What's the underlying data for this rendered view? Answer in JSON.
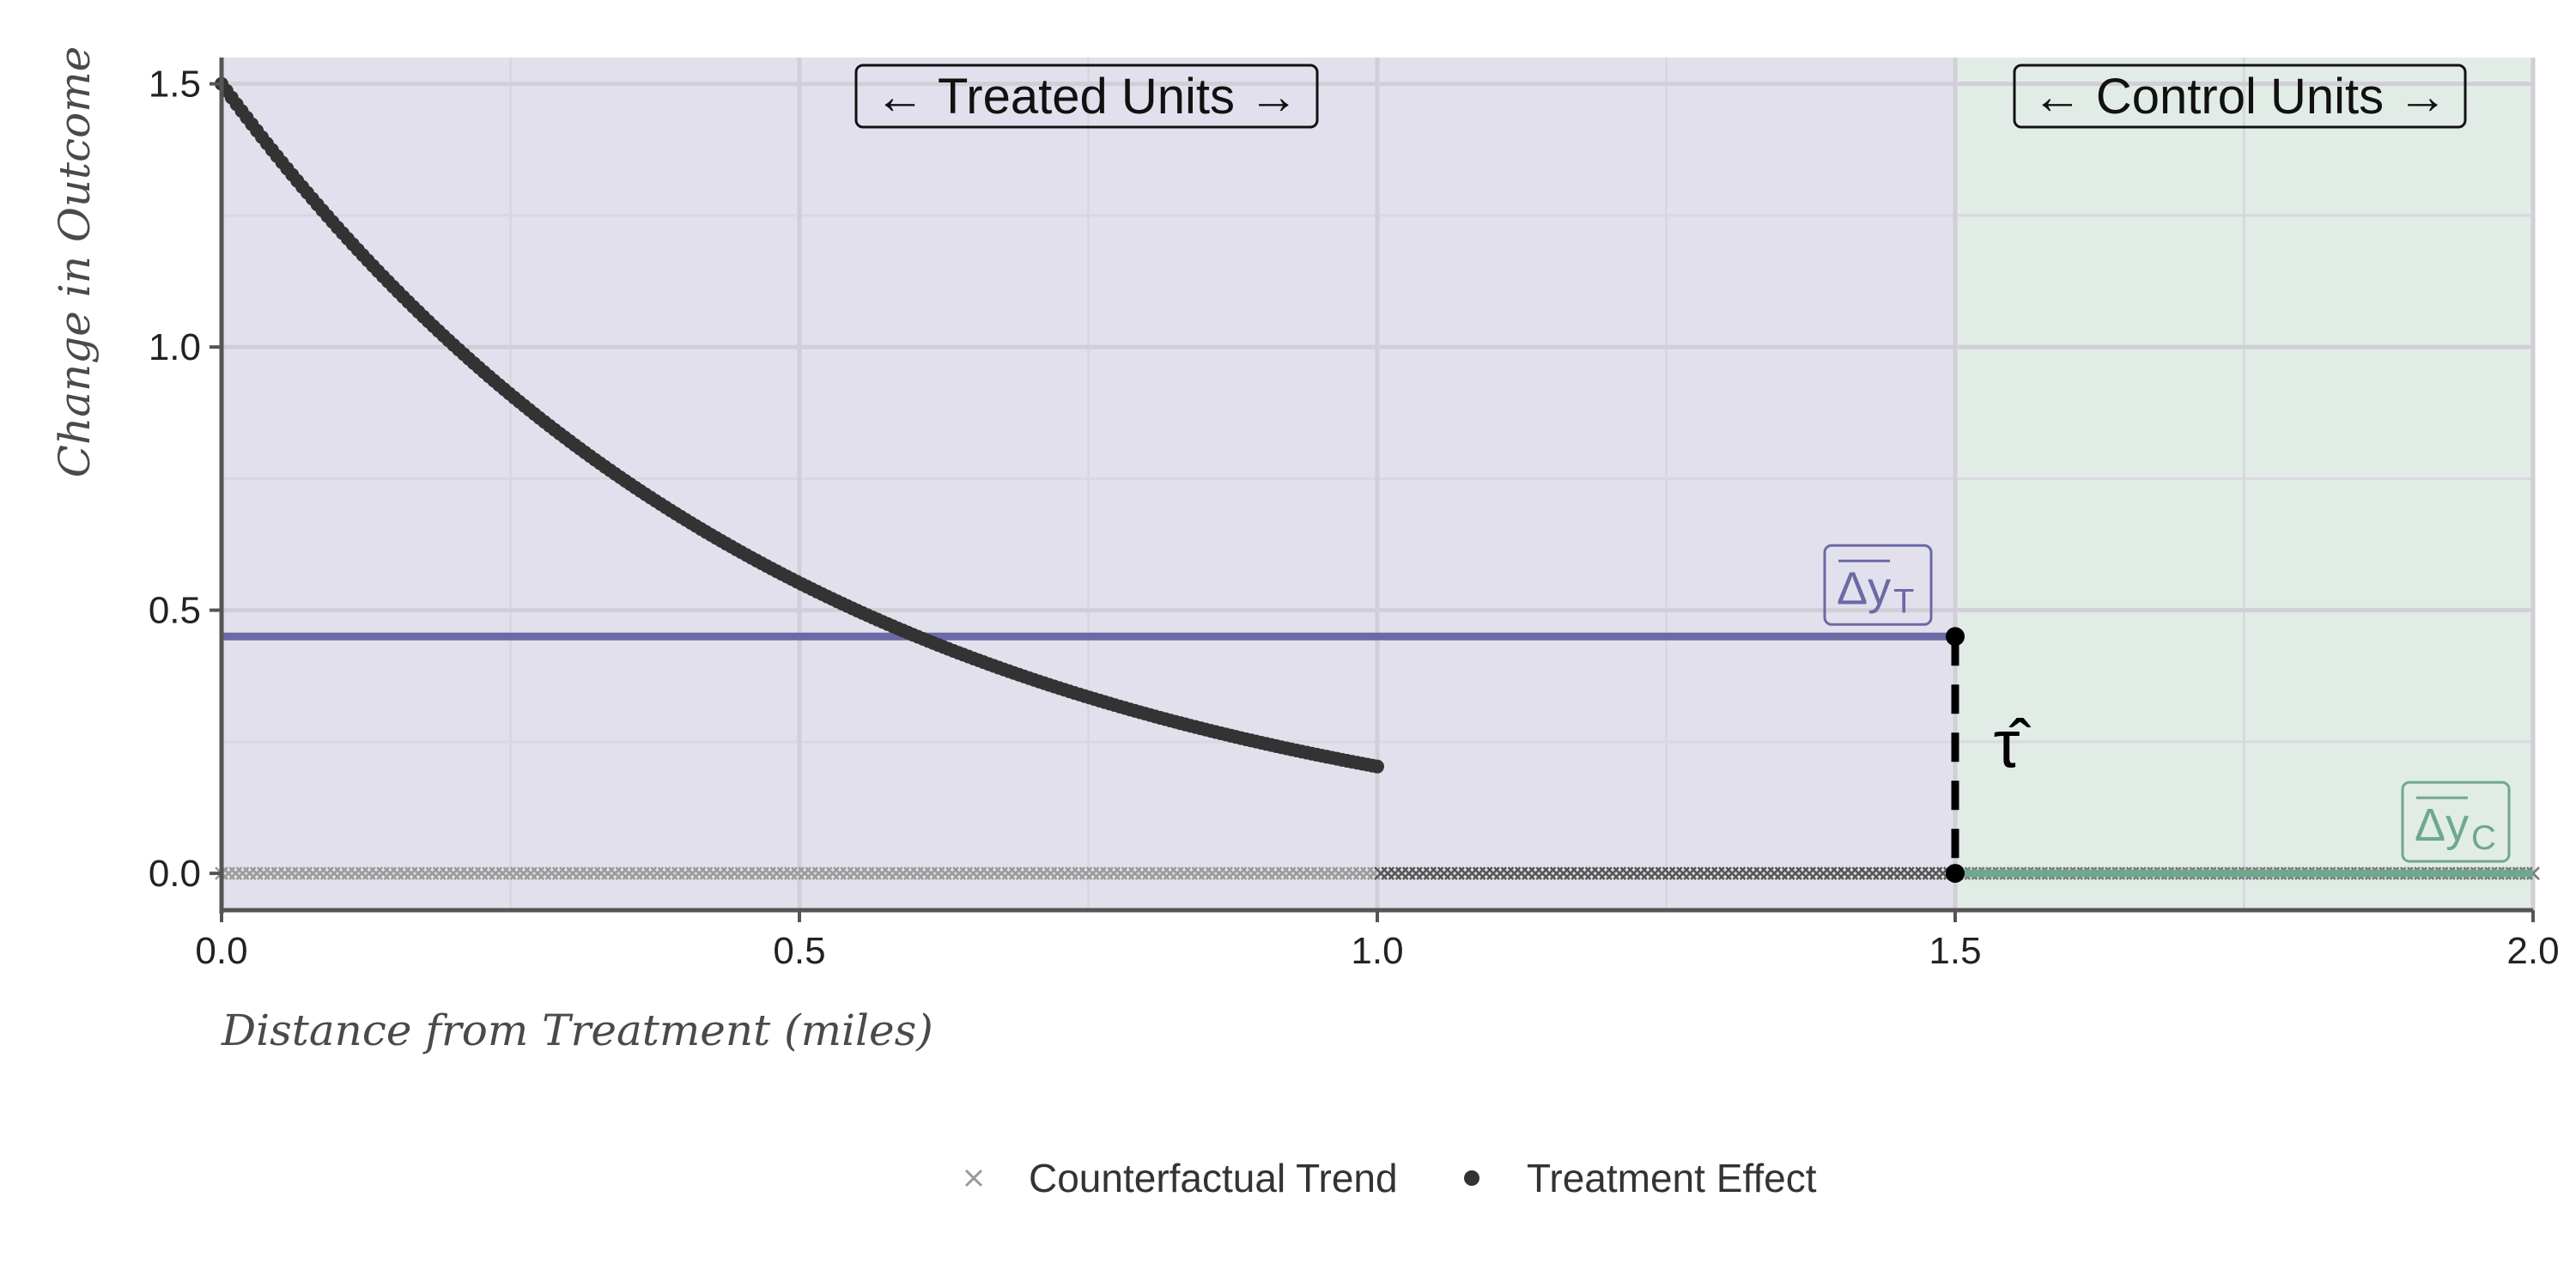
{
  "chart_data": {
    "type": "scatter",
    "title": "",
    "xlabel": "Distance from Treatment (miles)",
    "ylabel": "Change in Outcome",
    "xlim": [
      0,
      2.0
    ],
    "ylim": [
      -0.07,
      1.55
    ],
    "x_ticks": [
      "0.0",
      "0.5",
      "1.0",
      "1.5",
      "2.0"
    ],
    "y_ticks": [
      "0.0",
      "0.5",
      "1.0",
      "1.5"
    ],
    "grid": true,
    "legend_position": "bottom",
    "regions": [
      {
        "label": "← Treated Units →",
        "x_range": [
          0,
          1.5
        ],
        "color": "#e2e0ec"
      },
      {
        "label": "← Control Units →",
        "x_range": [
          1.5,
          2.0
        ],
        "color": "#e2ece6"
      }
    ],
    "series": [
      {
        "name": "Counterfactual Trend",
        "marker": "x",
        "color": "#9a9a9a",
        "x_range": [
          0,
          2.0
        ],
        "y": 0.0
      },
      {
        "name": "Treatment Effect",
        "marker": "dot",
        "color": "#333333",
        "function": "y = 1.5 * exp(-2 * x)",
        "x_range": [
          0,
          1.0
        ],
        "x": [
          0.0,
          0.05,
          0.1,
          0.15,
          0.2,
          0.25,
          0.3,
          0.35,
          0.4,
          0.45,
          0.5,
          0.55,
          0.6,
          0.65,
          0.7,
          0.75,
          0.8,
          0.85,
          0.9,
          0.95,
          1.0
        ],
        "y": [
          1.5,
          1.36,
          1.23,
          1.11,
          1.01,
          0.91,
          0.82,
          0.75,
          0.67,
          0.61,
          0.55,
          0.5,
          0.45,
          0.41,
          0.37,
          0.33,
          0.3,
          0.27,
          0.25,
          0.22,
          0.2
        ]
      }
    ],
    "mean_lines": [
      {
        "label_main": "Δy",
        "label_sub": "T",
        "y": 0.45,
        "x_range": [
          0,
          1.5
        ],
        "color": "#6b6aa6"
      },
      {
        "label_main": "Δy",
        "label_sub": "C",
        "y": 0.0,
        "x_range": [
          1.5,
          2.0
        ],
        "color": "#6fa88c"
      }
    ],
    "estimate": {
      "label": "τ̂",
      "x": 1.5,
      "y_from": 0.0,
      "y_to": 0.45
    }
  }
}
